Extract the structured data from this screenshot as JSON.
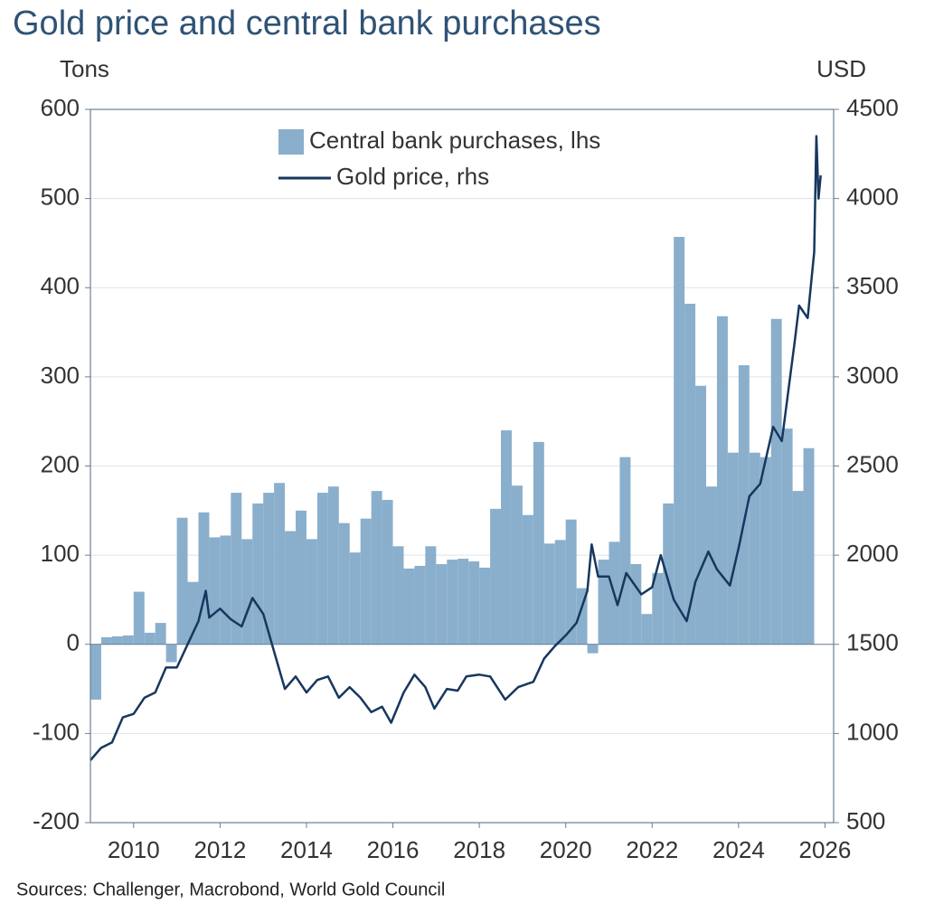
{
  "chart_data": {
    "type": "combo",
    "title": "Gold price and central bank purchases",
    "y_label": "Tons",
    "y2_label": "USD",
    "source": "Sources: Challenger, Macrobond, World Gold Council",
    "xlim": [
      2009,
      2026.2
    ],
    "xticks": [
      2010,
      2012,
      2014,
      2016,
      2018,
      2020,
      2022,
      2024,
      2026
    ],
    "ylim": [
      -200,
      600
    ],
    "yticks": [
      -200,
      -100,
      0,
      100,
      200,
      300,
      400,
      500,
      600
    ],
    "y2lim": [
      500,
      4500
    ],
    "y2ticks": [
      500,
      1000,
      1500,
      2000,
      2500,
      3000,
      3500,
      4000,
      4500
    ],
    "grid": true,
    "legend": "top",
    "series": [
      {
        "name": "Central bank purchases, lhs",
        "type": "bar",
        "color": "#8aafcc",
        "x": [
          2009,
          2009.25,
          2009.5,
          2009.75,
          2010,
          2010.25,
          2010.5,
          2010.75,
          2011,
          2011.25,
          2011.5,
          2011.75,
          2012,
          2012.25,
          2012.5,
          2012.75,
          2013,
          2013.25,
          2013.5,
          2013.75,
          2014,
          2014.25,
          2014.5,
          2014.75,
          2015,
          2015.25,
          2015.5,
          2015.75,
          2016,
          2016.25,
          2016.5,
          2016.75,
          2017,
          2017.25,
          2017.5,
          2017.75,
          2018,
          2018.25,
          2018.5,
          2018.75,
          2019,
          2019.25,
          2019.5,
          2019.75,
          2020,
          2020.25,
          2020.5,
          2020.75,
          2021,
          2021.25,
          2021.5,
          2021.75,
          2022,
          2022.25,
          2022.5,
          2022.75,
          2023,
          2023.25,
          2023.5,
          2023.75,
          2024,
          2024.25,
          2024.5,
          2024.75,
          2025,
          2025.25,
          2025.5
        ],
        "values": [
          -62,
          8,
          9,
          10,
          59,
          13,
          24,
          -20,
          142,
          70,
          148,
          120,
          122,
          170,
          118,
          158,
          170,
          181,
          127,
          150,
          118,
          170,
          177,
          136,
          103,
          141,
          172,
          162,
          110,
          85,
          88,
          110,
          90,
          95,
          96,
          93,
          86,
          152,
          240,
          178,
          145,
          227,
          113,
          117,
          140,
          63,
          -10,
          95,
          115,
          210,
          90,
          34,
          80,
          158,
          457,
          382,
          290,
          177,
          368,
          215,
          313,
          215,
          210,
          365,
          242,
          172,
          220
        ]
      },
      {
        "name": "Gold price, rhs",
        "type": "line",
        "axis": "y2",
        "color": "#17375e",
        "x": [
          2009.0,
          2009.25,
          2009.5,
          2009.75,
          2010.0,
          2010.25,
          2010.5,
          2010.75,
          2011.0,
          2011.25,
          2011.5,
          2011.67,
          2011.75,
          2012.0,
          2012.25,
          2012.5,
          2012.75,
          2013.0,
          2013.25,
          2013.5,
          2013.75,
          2014.0,
          2014.25,
          2014.5,
          2014.75,
          2015.0,
          2015.25,
          2015.5,
          2015.75,
          2015.96,
          2016.25,
          2016.5,
          2016.75,
          2016.96,
          2017.25,
          2017.5,
          2017.7,
          2018.0,
          2018.25,
          2018.6,
          2018.9,
          2019.25,
          2019.5,
          2019.75,
          2020.0,
          2020.25,
          2020.5,
          2020.6,
          2020.75,
          2021.0,
          2021.2,
          2021.4,
          2021.75,
          2022.0,
          2022.2,
          2022.5,
          2022.8,
          2023.0,
          2023.3,
          2023.5,
          2023.8,
          2024.0,
          2024.25,
          2024.5,
          2024.8,
          2025.0,
          2025.3,
          2025.4,
          2025.6,
          2025.75,
          2025.8,
          2025.85,
          2025.9
        ],
        "values": [
          850,
          920,
          950,
          1090,
          1110,
          1200,
          1230,
          1370,
          1370,
          1500,
          1630,
          1800,
          1650,
          1700,
          1640,
          1600,
          1760,
          1670,
          1460,
          1250,
          1320,
          1230,
          1300,
          1320,
          1200,
          1260,
          1200,
          1120,
          1150,
          1060,
          1230,
          1330,
          1260,
          1140,
          1250,
          1240,
          1320,
          1330,
          1320,
          1190,
          1260,
          1290,
          1420,
          1490,
          1550,
          1620,
          1800,
          2060,
          1880,
          1880,
          1720,
          1900,
          1780,
          1820,
          2000,
          1750,
          1630,
          1850,
          2020,
          1920,
          1830,
          2040,
          2330,
          2400,
          2720,
          2640,
          3200,
          3400,
          3330,
          3700,
          4350,
          4000,
          4130
        ]
      }
    ]
  }
}
